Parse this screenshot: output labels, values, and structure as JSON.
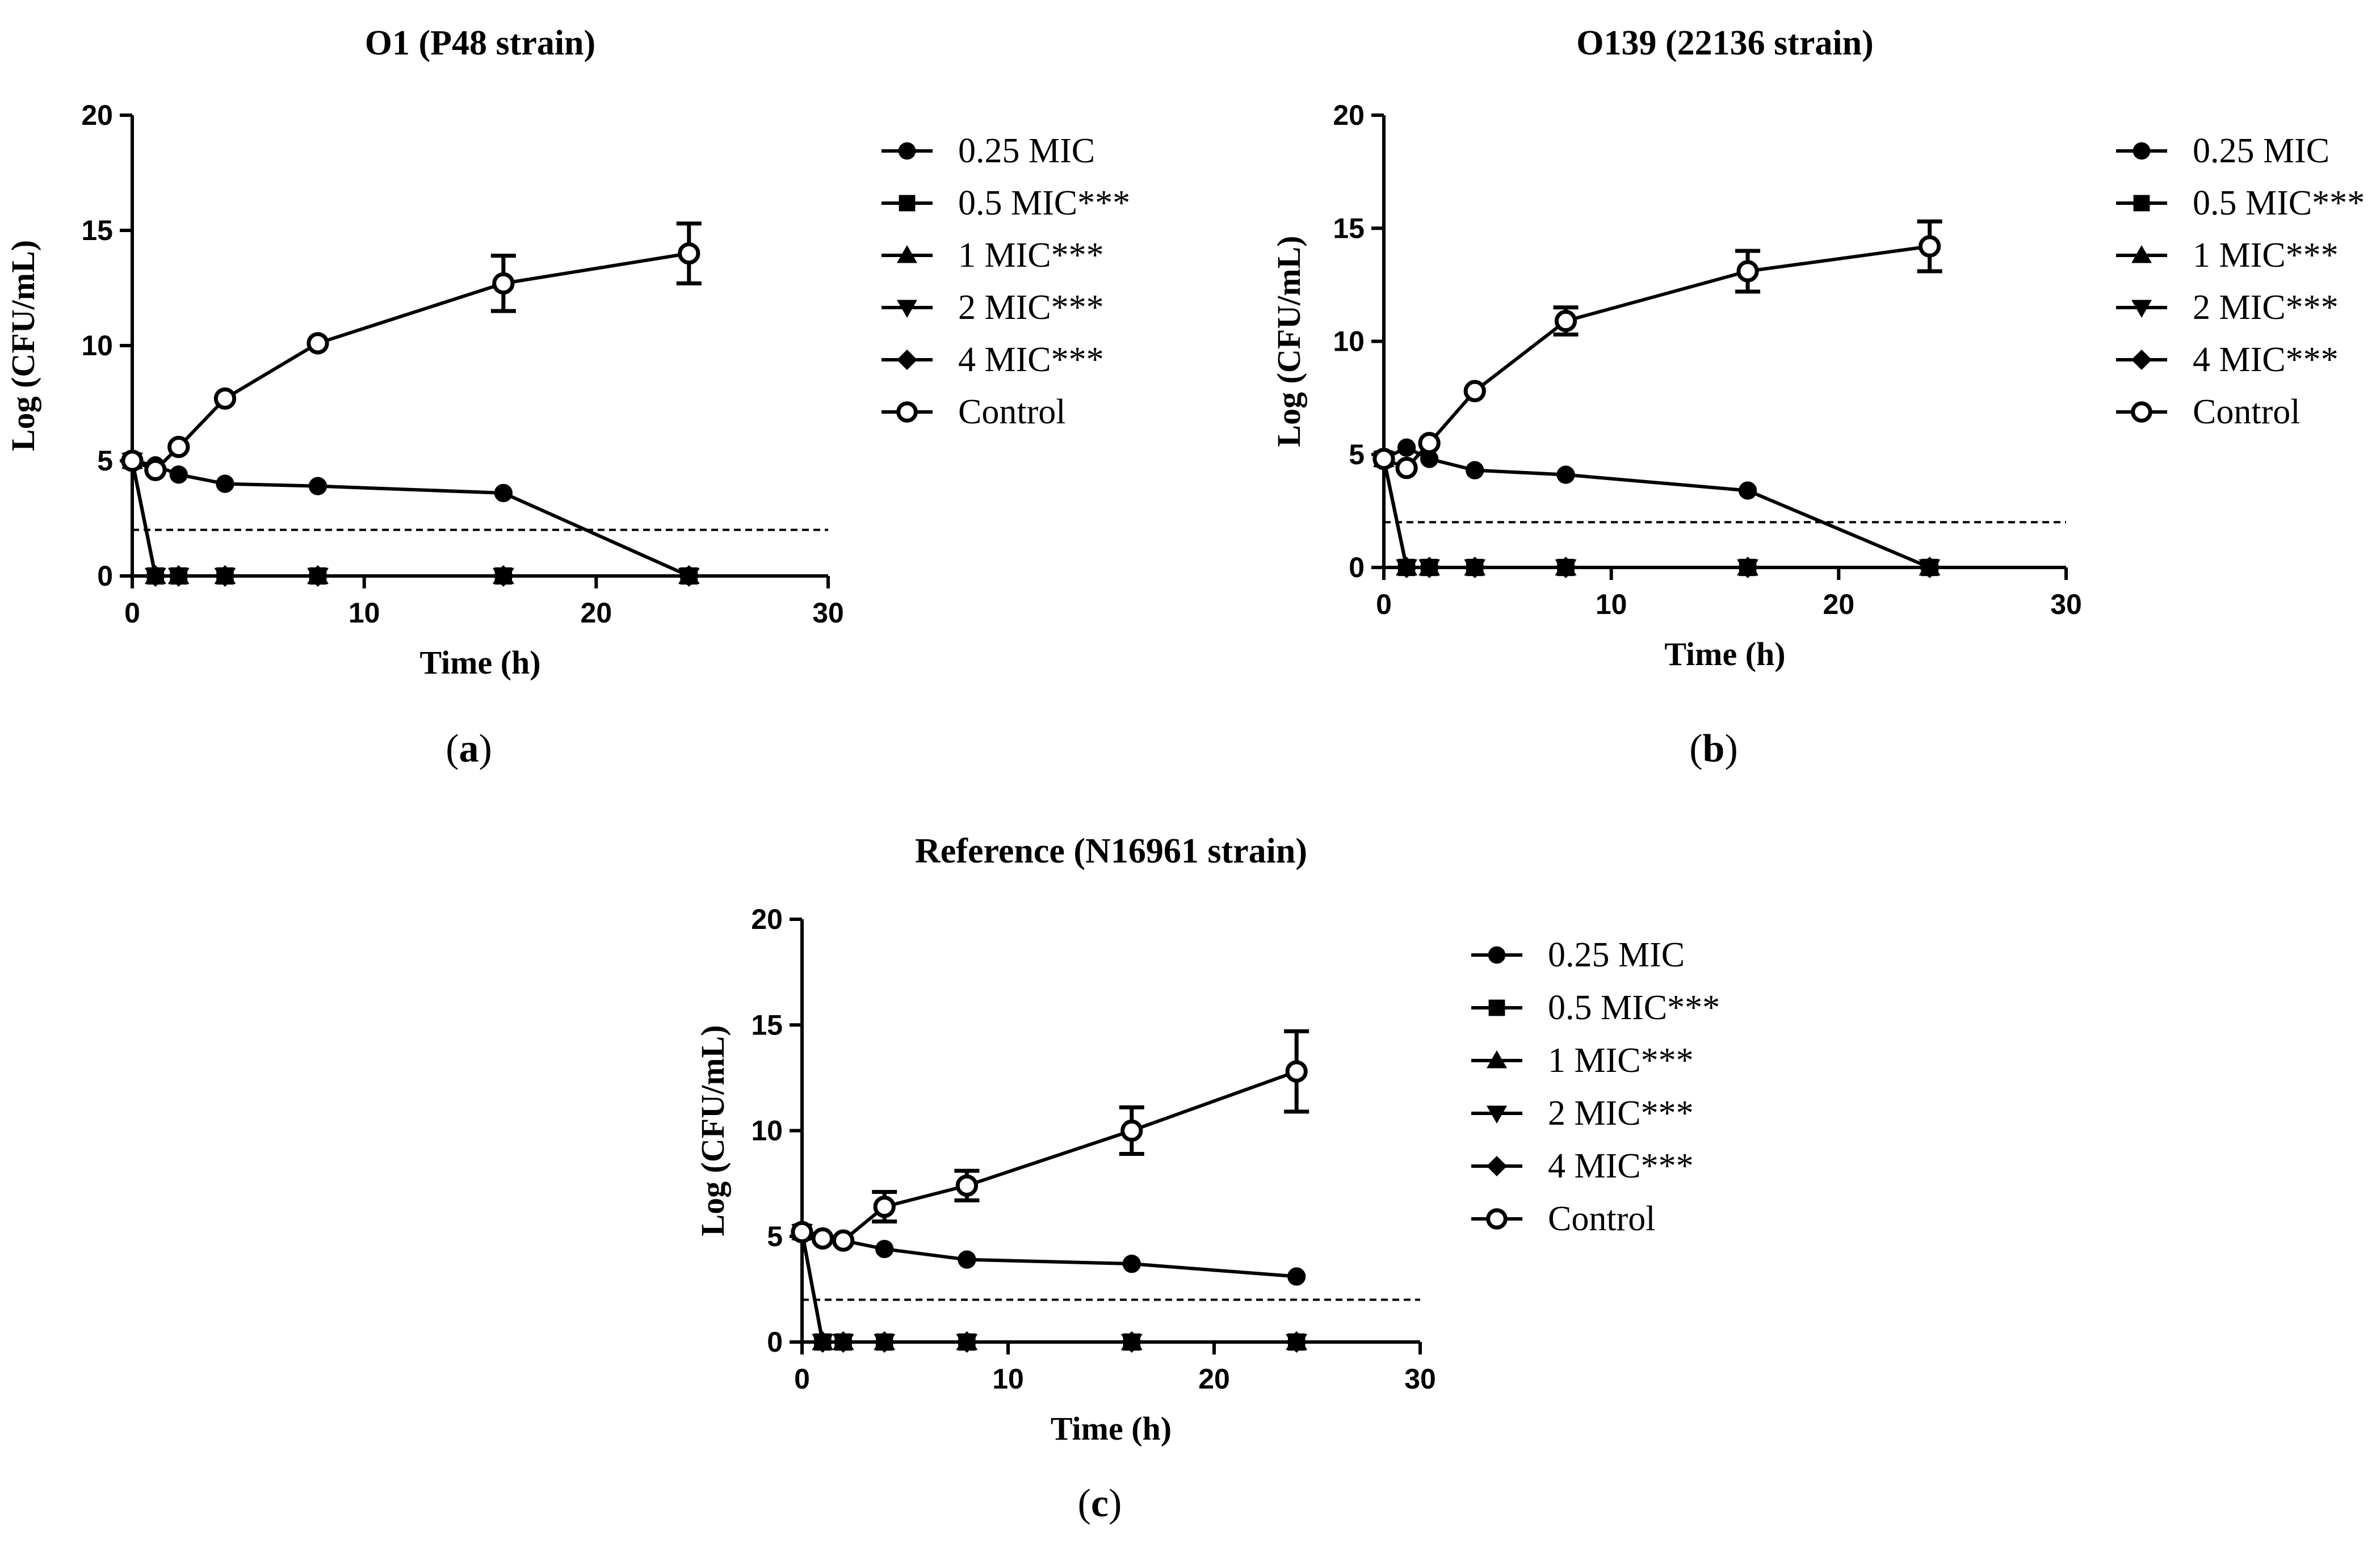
{
  "chart_data": [
    {
      "type": "line",
      "panel": "a",
      "title": "O1 (P48 strain)",
      "xlabel": "Time (h)",
      "ylabel": "Log (CFU/mL)",
      "xlim": [
        0,
        30
      ],
      "ylim": [
        0,
        20
      ],
      "xticks": [
        0,
        10,
        20,
        30
      ],
      "yticks": [
        0,
        5,
        10,
        15,
        20
      ],
      "threshold": 2,
      "legend_position": "right",
      "caption_letter": "a",
      "series": [
        {
          "name": "0.25 MIC",
          "marker": "circle",
          "x": [
            0,
            1,
            2,
            4,
            8,
            16,
            24
          ],
          "y": [
            5,
            4.8,
            4.4,
            4.0,
            3.9,
            3.6,
            0
          ]
        },
        {
          "name": "0.5 MIC***",
          "marker": "square",
          "x": [
            0,
            1,
            2,
            4,
            8,
            16,
            24
          ],
          "y": [
            5,
            0,
            0,
            0,
            0,
            0,
            0
          ]
        },
        {
          "name": "1 MIC***",
          "marker": "triangle-up",
          "x": [
            0,
            1,
            2,
            4,
            8,
            16,
            24
          ],
          "y": [
            5,
            0,
            0,
            0,
            0,
            0,
            0
          ]
        },
        {
          "name": "2 MIC***",
          "marker": "triangle-down",
          "x": [
            0,
            1,
            2,
            4,
            8,
            16,
            24
          ],
          "y": [
            5,
            0,
            0,
            0,
            0,
            0,
            0
          ]
        },
        {
          "name": "4 MIC***",
          "marker": "diamond",
          "x": [
            0,
            1,
            2,
            4,
            8,
            16,
            24
          ],
          "y": [
            5,
            0,
            0,
            0,
            0,
            0,
            0
          ]
        },
        {
          "name": "Control",
          "marker": "open-circle",
          "x": [
            0,
            1,
            2,
            4,
            8,
            16,
            24
          ],
          "y": [
            5,
            4.6,
            5.6,
            7.7,
            10.1,
            12.7,
            14.0
          ],
          "err": [
            0,
            0,
            0,
            0,
            0,
            1.2,
            1.3
          ]
        }
      ]
    },
    {
      "type": "line",
      "panel": "b",
      "title": "O139 (22136 strain)",
      "xlabel": "Time (h)",
      "ylabel": "Log (CFU/mL)",
      "xlim": [
        0,
        30
      ],
      "ylim": [
        0,
        20
      ],
      "xticks": [
        0,
        10,
        20,
        30
      ],
      "yticks": [
        0,
        5,
        10,
        15,
        20
      ],
      "threshold": 2,
      "legend_position": "right",
      "caption_letter": "b",
      "series": [
        {
          "name": "0.25 MIC",
          "marker": "circle",
          "x": [
            0,
            1,
            2,
            4,
            8,
            16,
            24
          ],
          "y": [
            4.8,
            5.3,
            4.8,
            4.3,
            4.1,
            3.4,
            0
          ]
        },
        {
          "name": "0.5 MIC***",
          "marker": "square",
          "x": [
            0,
            1,
            2,
            4,
            8,
            16,
            24
          ],
          "y": [
            4.8,
            0,
            0,
            0,
            0,
            0,
            0
          ]
        },
        {
          "name": "1 MIC***",
          "marker": "triangle-up",
          "x": [
            0,
            1,
            2,
            4,
            8,
            16,
            24
          ],
          "y": [
            4.8,
            0,
            0,
            0,
            0,
            0,
            0
          ]
        },
        {
          "name": "2 MIC***",
          "marker": "triangle-down",
          "x": [
            0,
            1,
            2,
            4,
            8,
            16,
            24
          ],
          "y": [
            4.8,
            0,
            0,
            0,
            0,
            0,
            0
          ]
        },
        {
          "name": "4 MIC***",
          "marker": "diamond",
          "x": [
            0,
            1,
            2,
            4,
            8,
            16,
            24
          ],
          "y": [
            4.8,
            0,
            0,
            0,
            0,
            0,
            0
          ]
        },
        {
          "name": "Control",
          "marker": "open-circle",
          "x": [
            0,
            1,
            2,
            4,
            8,
            16,
            24
          ],
          "y": [
            4.8,
            4.4,
            5.5,
            7.8,
            10.9,
            13.1,
            14.2
          ],
          "err": [
            0,
            0,
            0,
            0,
            0.6,
            0.9,
            1.1
          ]
        }
      ]
    },
    {
      "type": "line",
      "panel": "c",
      "title": "Reference (N16961 strain)",
      "xlabel": "Time (h)",
      "ylabel": "Log (CFU/mL)",
      "xlim": [
        0,
        30
      ],
      "ylim": [
        0,
        20
      ],
      "xticks": [
        0,
        10,
        20,
        30
      ],
      "yticks": [
        0,
        5,
        10,
        15,
        20
      ],
      "threshold": 2,
      "legend_position": "right",
      "caption_letter": "c",
      "series": [
        {
          "name": "0.25 MIC",
          "marker": "circle",
          "x": [
            0,
            1,
            2,
            4,
            8,
            16,
            24
          ],
          "y": [
            5.2,
            4.9,
            4.8,
            4.4,
            3.9,
            3.7,
            3.1
          ]
        },
        {
          "name": "0.5 MIC***",
          "marker": "square",
          "x": [
            0,
            1,
            2,
            4,
            8,
            16,
            24
          ],
          "y": [
            5.2,
            0,
            0,
            0,
            0,
            0,
            0
          ]
        },
        {
          "name": "1 MIC***",
          "marker": "triangle-up",
          "x": [
            0,
            1,
            2,
            4,
            8,
            16,
            24
          ],
          "y": [
            5.2,
            0,
            0,
            0,
            0,
            0,
            0
          ]
        },
        {
          "name": "2 MIC***",
          "marker": "triangle-down",
          "x": [
            0,
            1,
            2,
            4,
            8,
            16,
            24
          ],
          "y": [
            5.2,
            0,
            0,
            0,
            0,
            0,
            0
          ]
        },
        {
          "name": "4 MIC***",
          "marker": "diamond",
          "x": [
            0,
            1,
            2,
            4,
            8,
            16,
            24
          ],
          "y": [
            5.2,
            0,
            0,
            0,
            0,
            0,
            0
          ]
        },
        {
          "name": "Control",
          "marker": "open-circle",
          "x": [
            0,
            1,
            2,
            4,
            8,
            16,
            24
          ],
          "y": [
            5.2,
            4.9,
            4.8,
            6.4,
            7.4,
            10.0,
            12.8
          ],
          "err": [
            0,
            0,
            0,
            0.7,
            0.7,
            1.1,
            1.9
          ]
        }
      ]
    }
  ]
}
